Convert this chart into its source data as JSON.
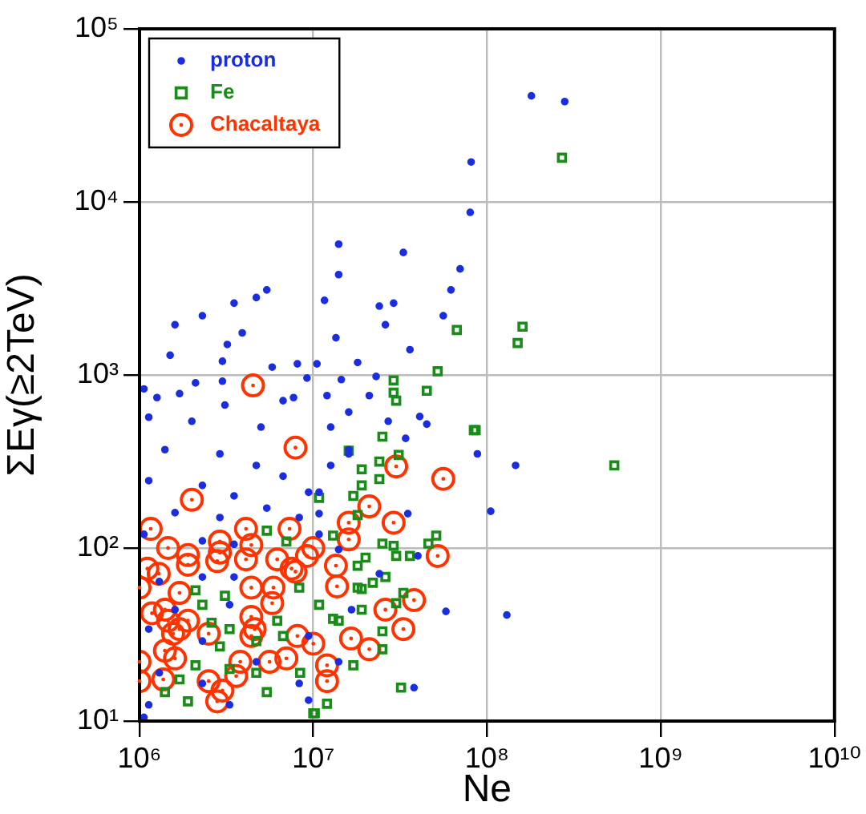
{
  "chart_data": {
    "type": "scatter",
    "xlabel": "Ne",
    "ylabel": "ΣEγ(≥2TeV)",
    "log": "xy",
    "grid": true,
    "legend": "top left",
    "xlim": [
      1000000,
      10000000000
    ],
    "ylim": [
      10,
      100000
    ],
    "xticks": [
      {
        "value": 1000000,
        "label": "10⁶"
      },
      {
        "value": 10000000,
        "label": "10⁷"
      },
      {
        "value": 100000000,
        "label": "10⁸"
      },
      {
        "value": 1000000000,
        "label": "10⁹"
      },
      {
        "value": 10000000000,
        "label": "10¹⁰"
      }
    ],
    "yticks": [
      {
        "value": 10,
        "label": "10¹"
      },
      {
        "value": 100,
        "label": "10²"
      },
      {
        "value": 1000,
        "label": "10³"
      },
      {
        "value": 10000,
        "label": "10⁴"
      },
      {
        "value": 100000,
        "label": "10⁵"
      }
    ],
    "series": [
      {
        "name": "proton",
        "color": "#1a2ee0",
        "marker": "circle",
        "x": [
          81000000,
          80000000,
          14000000,
          33000000,
          14000000,
          70000000,
          62000000,
          5400000,
          11600000,
          24000000,
          29000000,
          3500000,
          4700000,
          2300000,
          1600000,
          26000000,
          56000000,
          13500000,
          3900000,
          36000000,
          3200000,
          1500000,
          3000000,
          5800000,
          8100000,
          18000000,
          10500000,
          1060000,
          2100000,
          3000000,
          9200000,
          14500000,
          23000000,
          1260000,
          7700000,
          12000000,
          21000000,
          180000000,
          280000000,
          88000000,
          146000000,
          105000000,
          130000000,
          58000000,
          38000000,
          34000000,
          41000000,
          45000000,
          35000000,
          40000000,
          24000000,
          27000000,
          16000000,
          12600000,
          9400000,
          10800000,
          14000000,
          16600000,
          14000000,
          9400000,
          1700000,
          3100000,
          1130000,
          2000000,
          5000000,
          12600000,
          1400000,
          2900000,
          4700000,
          6700000,
          1130000,
          2300000,
          3500000,
          1600000,
          2900000,
          5400000,
          8300000,
          10800000,
          1060000,
          2300000,
          3500000,
          10800000,
          1300000,
          2300000,
          3500000,
          1600000,
          3300000,
          1130000,
          2300000,
          4700000,
          1300000,
          2300000,
          1130000,
          3300000,
          9400000,
          8300000,
          1060000,
          16000000,
          16000000,
          6700000
        ],
        "values": [
          17000,
          8700,
          5700,
          5100,
          3800,
          4100,
          3100,
          3100,
          2700,
          2500,
          2600,
          2600,
          2800,
          2200,
          1950,
          1950,
          2200,
          1640,
          1750,
          1400,
          1500,
          1300,
          1200,
          1110,
          1160,
          1180,
          1160,
          830,
          900,
          920,
          960,
          940,
          980,
          740,
          740,
          760,
          760,
          41000,
          38000,
          350,
          300,
          163,
          41,
          43,
          15.6,
          430,
          575,
          520,
          158,
          90,
          71,
          540,
          370,
          300,
          210,
          158,
          98,
          44,
          22,
          13.2,
          780,
          670,
          570,
          540,
          500,
          500,
          370,
          350,
          300,
          260,
          245,
          230,
          200,
          160,
          150,
          170,
          150,
          210,
          120,
          110,
          105,
          120,
          64,
          68,
          68,
          44,
          47,
          34,
          29,
          22,
          19,
          16.5,
          12.4,
          12.4,
          31,
          16.5,
          10.5,
          350,
          610,
          710
        ]
      },
      {
        "name": "Fe",
        "color": "#1a8c1a",
        "marker": "square",
        "x": [
          270000000,
          67000000,
          160000000,
          150000000,
          84000000,
          540000000,
          52000000,
          29000000,
          29000000,
          45000000,
          30000000,
          86000000,
          25000000,
          16000000,
          31000000,
          24000000,
          19000000,
          24000000,
          19000000,
          17000000,
          10800000,
          18000000,
          13000000,
          51000000,
          46000000,
          25000000,
          29000000,
          20000000,
          30000000,
          36000000,
          18000000,
          26000000,
          22000000,
          19000000,
          33000000,
          30000000,
          19000000,
          13000000,
          25000000,
          25000000,
          17000000,
          32000000,
          12000000,
          10000000,
          5400000,
          7000000,
          2100000,
          3100000,
          2300000,
          8300000,
          10800000,
          2600000,
          3300000,
          6200000,
          2900000,
          4700000,
          6700000,
          2100000,
          3300000,
          4700000,
          1700000,
          1400000,
          1900000,
          5400000,
          8400000,
          10200000,
          14000000,
          18000000
        ],
        "values": [
          18000,
          1820,
          1900,
          1530,
          480,
          300,
          1050,
          930,
          790,
          810,
          710,
          480,
          440,
          365,
          345,
          316,
          285,
          250,
          230,
          200,
          195,
          155,
          118,
          118,
          106,
          106,
          103,
          88,
          90,
          90,
          79,
          68,
          63,
          58,
          55,
          48,
          44,
          39,
          33,
          26,
          21,
          15.6,
          12.6,
          11.1,
          126,
          109,
          57,
          53,
          47,
          59,
          47,
          37,
          34,
          38,
          27,
          29,
          31,
          21,
          20,
          19,
          17.4,
          14.7,
          13,
          14.7,
          19,
          11.1,
          38,
          59
        ]
      },
      {
        "name": "Chacaltaya",
        "color": "#ff3300",
        "marker": "circle",
        "x": [
          2000000,
          4500000,
          7900000,
          1160000,
          1460000,
          1900000,
          1900000,
          2900000,
          2900000,
          2800000,
          4100000,
          4400000,
          4100000,
          7300000,
          6200000,
          7500000,
          7900000,
          10000000,
          9200000,
          1110000,
          1290000,
          1000000,
          1700000,
          4400000,
          5900000,
          5800000,
          1180000,
          1400000,
          1460000,
          1900000,
          1700000,
          1560000,
          4400000,
          4600000,
          4400000,
          2500000,
          8100000,
          10000000,
          1400000,
          1600000,
          1000000,
          3800000,
          5600000,
          7000000,
          3600000,
          2500000,
          1370000,
          1000000,
          3000000,
          2800000,
          12000000,
          12000000,
          13500000,
          13700000,
          16000000,
          16000000,
          21000000,
          16500000,
          21000000,
          30000000,
          56000000,
          29000000,
          52000000,
          38000000,
          26000000,
          33000000
        ],
        "values": [
          190,
          870,
          380,
          129,
          100,
          91,
          80,
          109,
          94,
          84,
          129,
          104,
          86,
          129,
          86,
          76,
          73,
          100,
          90,
          76,
          71,
          59,
          55,
          59,
          59,
          48,
          42,
          44,
          38,
          38,
          34,
          32,
          40,
          34,
          31,
          32,
          31,
          28,
          25.5,
          23,
          22,
          22,
          22,
          23,
          18.2,
          17,
          17.4,
          17,
          15,
          13,
          21,
          17,
          79,
          60,
          140,
          112,
          174,
          30,
          26,
          296,
          251,
          140,
          90,
          50,
          44,
          34
        ]
      }
    ]
  }
}
